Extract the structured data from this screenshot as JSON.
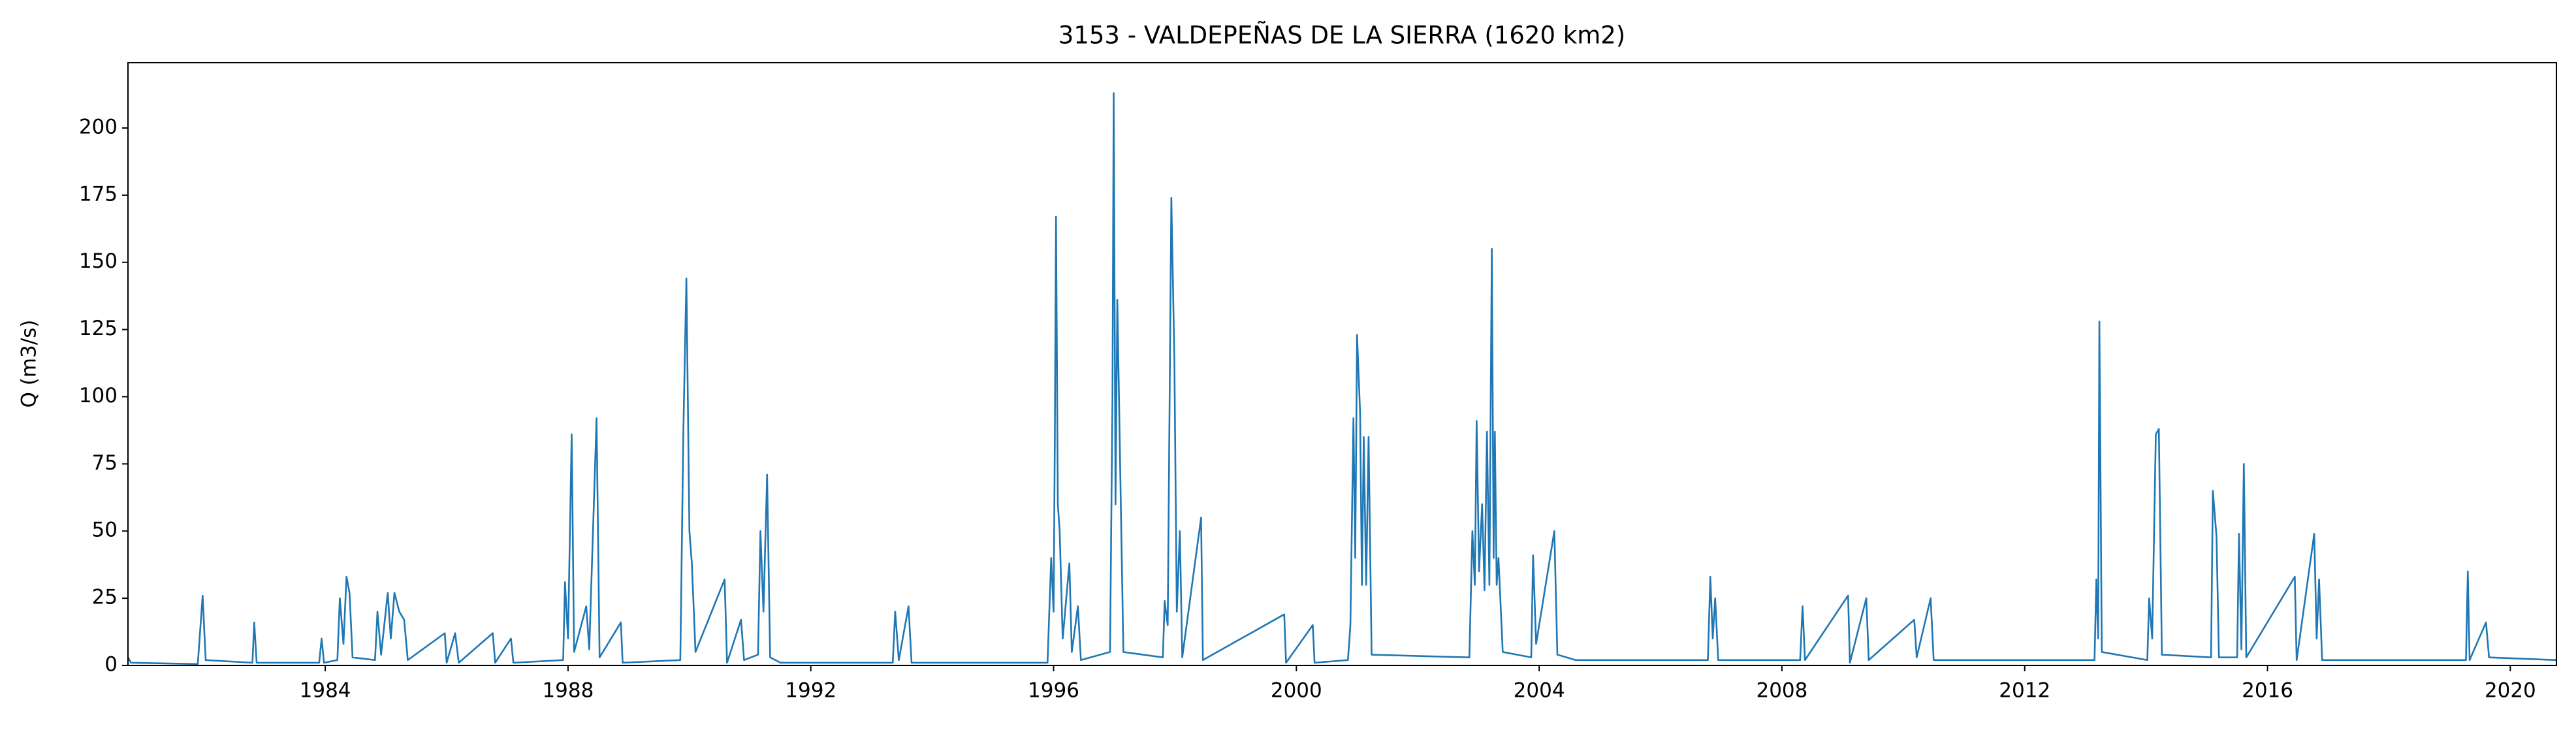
{
  "chart_data": {
    "type": "line",
    "title": "3153 - VALDEPEÑAS DE LA SIERRA (1620 km2)",
    "ylabel": "Q (m3/s)",
    "xlim": [
      1980.75,
      2020.76
    ],
    "xticks": [
      1984,
      1988,
      1992,
      1996,
      2000,
      2004,
      2008,
      2012,
      2016,
      2020
    ],
    "ylim": [
      0,
      224.3
    ],
    "yticks": [
      0,
      25,
      50,
      75,
      100,
      125,
      150,
      175,
      200
    ],
    "grid": false,
    "series": [
      {
        "color": "#1f77b4",
        "x": [
          1980.75,
          1980.8,
          1981.9,
          1981.98,
          1982.03,
          1982.8,
          1982.83,
          1982.87,
          1983.9,
          1983.94,
          1983.98,
          1984.2,
          1984.24,
          1984.3,
          1984.35,
          1984.4,
          1984.45,
          1984.82,
          1984.86,
          1984.92,
          1985.03,
          1985.08,
          1985.14,
          1985.22,
          1985.3,
          1985.36,
          1985.97,
          1986.0,
          1986.14,
          1986.2,
          1986.76,
          1986.8,
          1987.06,
          1987.1,
          1987.92,
          1987.95,
          1988.0,
          1988.06,
          1988.1,
          1988.3,
          1988.35,
          1988.47,
          1988.52,
          1988.87,
          1988.9,
          1989.85,
          1989.9,
          1989.95,
          1990.0,
          1990.04,
          1990.1,
          1990.58,
          1990.62,
          1990.85,
          1990.9,
          1991.13,
          1991.17,
          1991.22,
          1991.28,
          1991.33,
          1991.5,
          1993.35,
          1993.39,
          1993.45,
          1993.61,
          1993.66,
          1995.9,
          1995.96,
          1996.0,
          1996.02,
          1996.04,
          1996.07,
          1996.1,
          1996.15,
          1996.26,
          1996.3,
          1996.4,
          1996.45,
          1996.93,
          1996.97,
          1996.99,
          1997.02,
          1997.05,
          1997.1,
          1997.15,
          1997.8,
          1997.83,
          1997.88,
          1997.94,
          1997.99,
          1998.03,
          1998.08,
          1998.12,
          1998.43,
          1998.46,
          1999.8,
          1999.83,
          2000.27,
          2000.3,
          2000.85,
          2000.89,
          2000.94,
          2000.97,
          2001.0,
          2001.05,
          2001.08,
          2001.11,
          2001.15,
          2001.19,
          2001.24,
          2002.85,
          2002.9,
          2002.94,
          2002.97,
          2003.01,
          2003.06,
          2003.1,
          2003.14,
          2003.18,
          2003.22,
          2003.25,
          2003.27,
          2003.3,
          2003.33,
          2003.4,
          2003.87,
          2003.9,
          2003.95,
          2004.25,
          2004.3,
          2004.6,
          2006.78,
          2006.82,
          2006.86,
          2006.9,
          2006.95,
          2008.3,
          2008.34,
          2008.38,
          2009.09,
          2009.12,
          2009.39,
          2009.43,
          2010.18,
          2010.22,
          2010.45,
          2010.5,
          2013.15,
          2013.18,
          2013.21,
          2013.23,
          2013.27,
          2014.02,
          2014.05,
          2014.1,
          2014.16,
          2014.21,
          2014.26,
          2015.07,
          2015.1,
          2015.16,
          2015.2,
          2015.5,
          2015.53,
          2015.57,
          2015.61,
          2015.65,
          2016.45,
          2016.48,
          2016.77,
          2016.81,
          2016.85,
          2016.9,
          2019.27,
          2019.3,
          2019.33,
          2019.6,
          2019.65,
          2020.76
        ],
        "values": [
          3,
          1,
          0.5,
          26,
          2,
          1,
          16,
          1,
          1,
          10,
          1,
          2,
          25,
          8,
          33,
          27,
          3,
          2,
          20,
          4,
          27,
          10,
          27,
          20,
          17,
          2,
          12,
          1,
          12,
          1,
          12,
          1,
          10,
          1,
          2,
          31,
          10,
          86,
          5,
          22,
          6,
          92,
          3,
          16,
          1,
          2,
          87,
          144,
          50,
          38,
          5,
          32,
          1,
          17,
          2,
          4,
          50,
          20,
          71,
          3,
          1,
          1,
          20,
          2,
          22,
          1,
          1,
          40,
          20,
          83,
          167,
          60,
          50,
          10,
          38,
          5,
          22,
          2,
          5,
          100,
          213,
          60,
          136,
          70,
          5,
          3,
          24,
          15,
          174,
          114,
          20,
          50,
          3,
          55,
          2,
          19,
          1,
          15,
          1,
          2,
          15,
          92,
          40,
          123,
          94,
          30,
          85,
          30,
          85,
          4,
          3,
          50,
          30,
          91,
          35,
          60,
          28,
          87,
          30,
          155,
          40,
          87,
          30,
          40,
          5,
          3,
          41,
          8,
          50,
          4,
          2,
          2,
          33,
          10,
          25,
          2,
          2,
          22,
          2,
          26,
          1,
          25,
          2,
          17,
          3,
          25,
          2,
          2,
          32,
          10,
          128,
          5,
          2,
          25,
          10,
          86,
          88,
          4,
          3,
          65,
          48,
          3,
          3,
          49,
          6,
          75,
          3,
          33,
          2,
          49,
          10,
          32,
          2,
          2,
          35,
          2,
          16,
          3,
          2
        ]
      }
    ]
  }
}
